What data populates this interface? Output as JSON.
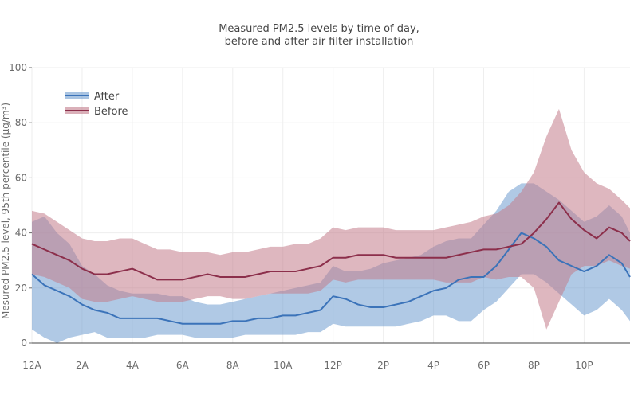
{
  "chart_data": {
    "type": "area",
    "title": [
      "Measured PM2.5 levels by time of day,",
      "before and after air filter installation"
    ],
    "xlabel": "",
    "ylabel": "Mesured PM2.5 level, 95th percentile (µg/m³)",
    "xlim": [
      0,
      23.83
    ],
    "ylim": [
      0,
      100
    ],
    "x_ticks": [
      {
        "value": 0,
        "label": "12A"
      },
      {
        "value": 2,
        "label": "2A"
      },
      {
        "value": 4,
        "label": "4A"
      },
      {
        "value": 6,
        "label": "6A"
      },
      {
        "value": 8,
        "label": "8A"
      },
      {
        "value": 10,
        "label": "10A"
      },
      {
        "value": 12,
        "label": "12P"
      },
      {
        "value": 14,
        "label": "2P"
      },
      {
        "value": 16,
        "label": "4P"
      },
      {
        "value": 18,
        "label": "6P"
      },
      {
        "value": 20,
        "label": "8P"
      },
      {
        "value": 22,
        "label": "10P"
      }
    ],
    "y_ticks": [
      0,
      20,
      40,
      60,
      80,
      100
    ],
    "grid": true,
    "legend_position": "top-left",
    "series": [
      {
        "name": "After",
        "color": "#3b73b9",
        "band_color": "#6f9ccf",
        "points": [
          [
            0,
            25,
            5,
            44
          ],
          [
            0.5,
            21,
            2,
            46
          ],
          [
            1,
            19,
            0,
            40
          ],
          [
            1.5,
            17,
            2,
            36
          ],
          [
            2,
            14,
            3,
            28
          ],
          [
            2.5,
            12,
            4,
            25
          ],
          [
            3,
            11,
            2,
            21
          ],
          [
            3.5,
            9,
            2,
            19
          ],
          [
            4,
            9,
            2,
            18
          ],
          [
            4.5,
            9,
            2,
            18
          ],
          [
            5,
            9,
            3,
            18
          ],
          [
            5.5,
            8,
            3,
            17
          ],
          [
            6,
            7,
            3,
            17
          ],
          [
            6.5,
            7,
            2,
            15
          ],
          [
            7,
            7,
            2,
            14
          ],
          [
            7.5,
            7,
            2,
            14
          ],
          [
            8,
            8,
            2,
            15
          ],
          [
            8.5,
            8,
            3,
            16
          ],
          [
            9,
            9,
            3,
            17
          ],
          [
            9.5,
            9,
            3,
            18
          ],
          [
            10,
            10,
            3,
            19
          ],
          [
            10.5,
            10,
            3,
            20
          ],
          [
            11,
            11,
            4,
            21
          ],
          [
            11.5,
            12,
            4,
            22
          ],
          [
            12,
            17,
            7,
            28
          ],
          [
            12.5,
            16,
            6,
            26
          ],
          [
            13,
            14,
            6,
            26
          ],
          [
            13.5,
            13,
            6,
            27
          ],
          [
            14,
            13,
            6,
            29
          ],
          [
            14.5,
            14,
            6,
            30
          ],
          [
            15,
            15,
            7,
            31
          ],
          [
            15.5,
            17,
            8,
            32
          ],
          [
            16,
            19,
            10,
            35
          ],
          [
            16.5,
            20,
            10,
            37
          ],
          [
            17,
            23,
            8,
            38
          ],
          [
            17.5,
            24,
            8,
            38
          ],
          [
            18,
            24,
            12,
            43
          ],
          [
            18.5,
            28,
            15,
            48
          ],
          [
            19,
            34,
            20,
            55
          ],
          [
            19.5,
            40,
            25,
            58
          ],
          [
            20,
            38,
            25,
            58
          ],
          [
            20.5,
            35,
            22,
            55
          ],
          [
            21,
            30,
            18,
            52
          ],
          [
            21.5,
            28,
            14,
            48
          ],
          [
            22,
            26,
            10,
            44
          ],
          [
            22.5,
            28,
            12,
            46
          ],
          [
            23,
            32,
            16,
            50
          ],
          [
            23.5,
            29,
            12,
            46
          ],
          [
            23.83,
            24,
            8,
            40
          ]
        ]
      },
      {
        "name": "Before",
        "color": "#8c2f4b",
        "band_color": "#c27b8a",
        "points": [
          [
            0,
            36,
            25,
            48
          ],
          [
            0.5,
            34,
            24,
            47
          ],
          [
            1,
            32,
            22,
            44
          ],
          [
            1.5,
            30,
            20,
            41
          ],
          [
            2,
            27,
            16,
            38
          ],
          [
            2.5,
            25,
            15,
            37
          ],
          [
            3,
            25,
            15,
            37
          ],
          [
            3.5,
            26,
            16,
            38
          ],
          [
            4,
            27,
            17,
            38
          ],
          [
            4.5,
            25,
            16,
            36
          ],
          [
            5,
            23,
            15,
            34
          ],
          [
            5.5,
            23,
            15,
            34
          ],
          [
            6,
            23,
            15,
            33
          ],
          [
            6.5,
            24,
            16,
            33
          ],
          [
            7,
            25,
            17,
            33
          ],
          [
            7.5,
            24,
            17,
            32
          ],
          [
            8,
            24,
            16,
            33
          ],
          [
            8.5,
            24,
            16,
            33
          ],
          [
            9,
            25,
            17,
            34
          ],
          [
            9.5,
            26,
            18,
            35
          ],
          [
            10,
            26,
            18,
            35
          ],
          [
            10.5,
            26,
            18,
            36
          ],
          [
            11,
            27,
            18,
            36
          ],
          [
            11.5,
            28,
            19,
            38
          ],
          [
            12,
            31,
            23,
            42
          ],
          [
            12.5,
            31,
            22,
            41
          ],
          [
            13,
            32,
            23,
            42
          ],
          [
            13.5,
            32,
            23,
            42
          ],
          [
            14,
            32,
            23,
            42
          ],
          [
            14.5,
            31,
            23,
            41
          ],
          [
            15,
            31,
            23,
            41
          ],
          [
            15.5,
            31,
            23,
            41
          ],
          [
            16,
            31,
            23,
            41
          ],
          [
            16.5,
            31,
            22,
            42
          ],
          [
            17,
            32,
            22,
            43
          ],
          [
            17.5,
            33,
            22,
            44
          ],
          [
            18,
            34,
            24,
            46
          ],
          [
            18.5,
            34,
            23,
            47
          ],
          [
            19,
            35,
            24,
            50
          ],
          [
            19.5,
            36,
            24,
            55
          ],
          [
            20,
            40,
            20,
            62
          ],
          [
            20.5,
            45,
            5,
            75
          ],
          [
            21,
            51,
            15,
            85
          ],
          [
            21.5,
            45,
            25,
            70
          ],
          [
            22,
            41,
            28,
            62
          ],
          [
            22.5,
            38,
            28,
            58
          ],
          [
            23,
            42,
            30,
            56
          ],
          [
            23.5,
            40,
            28,
            52
          ],
          [
            23.83,
            37,
            27,
            49
          ]
        ]
      }
    ]
  }
}
